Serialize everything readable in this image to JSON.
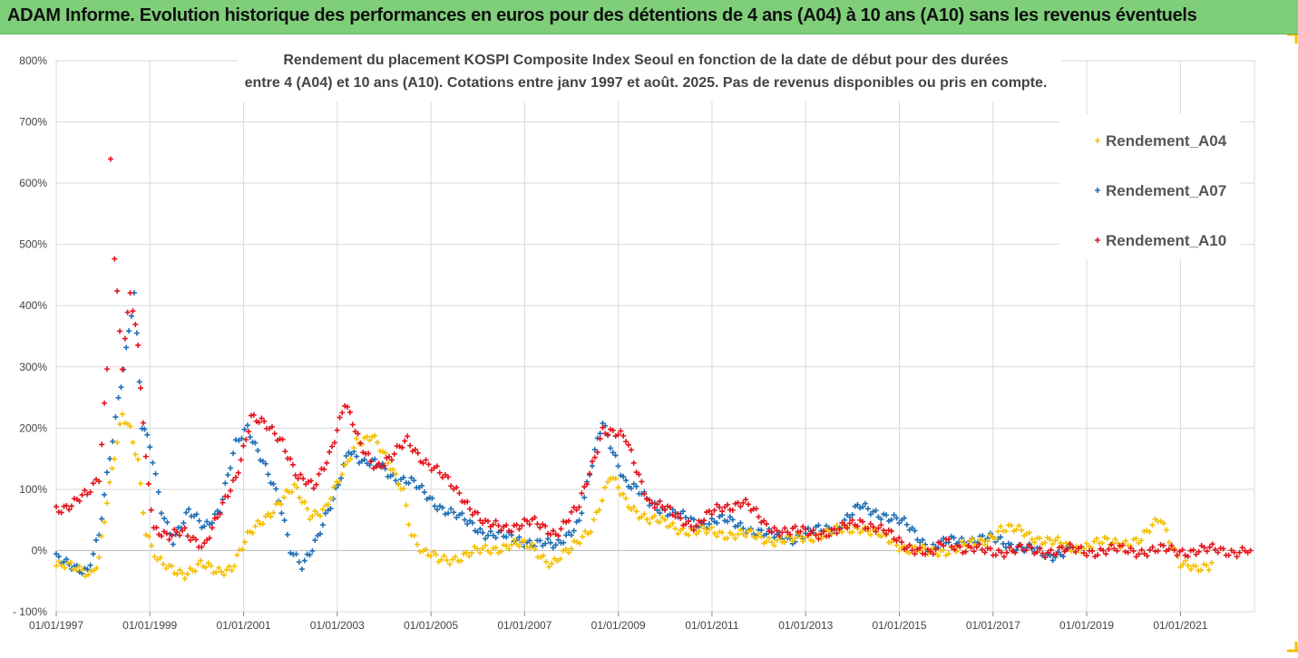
{
  "header": {
    "title": "ADAM Informe. Evolution historique des performances en euros pour des détentions de 4 ans (A04) à 10 ans (A10) sans les revenus éventuels"
  },
  "chart_data": {
    "type": "scatter",
    "title_line1": "Rendement du placement KOSPI Composite Index Seoul en fonction de la date de début pour des durées",
    "title_line2": "entre 4 (A04) et 10 ans (A10). Cotations entre janv 1997 et août. 2025. Pas de revenus disponibles ou pris en compte.",
    "xlabel": "",
    "ylabel": "",
    "x_ticks": [
      "01/01/1997",
      "01/01/1999",
      "01/01/2001",
      "01/01/2003",
      "01/01/2005",
      "01/01/2007",
      "01/01/2009",
      "01/01/2011",
      "01/01/2013",
      "01/01/2015",
      "01/01/2017",
      "01/01/2019",
      "01/01/2021"
    ],
    "y_ticks": [
      "800%",
      "700%",
      "600%",
      "500%",
      "400%",
      "300%",
      "200%",
      "100%",
      "0%",
      "- 100%"
    ],
    "ylim": [
      -100,
      800
    ],
    "xlim": [
      "1997-01-01",
      "2022-08-01"
    ],
    "grid": true,
    "legend_position": "top-right",
    "marker": "+",
    "series": [
      {
        "name": "Rendement_A04",
        "color": "#f5c000",
        "points": [
          [
            "1997-01-01",
            -25
          ],
          [
            "1997-04-01",
            -28
          ],
          [
            "1997-07-01",
            -32
          ],
          [
            "1997-10-01",
            -35
          ],
          [
            "1997-12-01",
            -10
          ],
          [
            "1998-02-01",
            80
          ],
          [
            "1998-04-01",
            150
          ],
          [
            "1998-06-01",
            220
          ],
          [
            "1998-08-01",
            200
          ],
          [
            "1998-10-01",
            150
          ],
          [
            "1998-12-01",
            30
          ],
          [
            "1999-03-01",
            -20
          ],
          [
            "1999-06-01",
            -30
          ],
          [
            "1999-10-01",
            -35
          ],
          [
            "2000-02-01",
            -25
          ],
          [
            "2000-06-01",
            -35
          ],
          [
            "2000-10-01",
            -25
          ],
          [
            "2001-02-01",
            20
          ],
          [
            "2001-06-01",
            50
          ],
          [
            "2001-10-01",
            80
          ],
          [
            "2002-02-01",
            100
          ],
          [
            "2002-06-01",
            60
          ],
          [
            "2002-10-01",
            70
          ],
          [
            "2003-03-01",
            130
          ],
          [
            "2003-06-01",
            180
          ],
          [
            "2003-10-01",
            190
          ],
          [
            "2004-02-01",
            140
          ],
          [
            "2004-06-01",
            100
          ],
          [
            "2004-08-01",
            30
          ],
          [
            "2004-11-01",
            -5
          ],
          [
            "2005-03-01",
            -15
          ],
          [
            "2005-08-01",
            -10
          ],
          [
            "2006-03-01",
            0
          ],
          [
            "2006-09-01",
            10
          ],
          [
            "2007-03-01",
            5
          ],
          [
            "2007-08-01",
            -20
          ],
          [
            "2008-01-01",
            0
          ],
          [
            "2008-06-01",
            40
          ],
          [
            "2008-11-01",
            120
          ],
          [
            "2009-03-01",
            80
          ],
          [
            "2009-09-01",
            50
          ],
          [
            "2010-03-01",
            40
          ],
          [
            "2010-09-01",
            30
          ],
          [
            "2011-03-01",
            30
          ],
          [
            "2011-09-01",
            25
          ],
          [
            "2012-03-01",
            20
          ],
          [
            "2012-09-01",
            15
          ],
          [
            "2013-03-01",
            25
          ],
          [
            "2013-09-01",
            30
          ],
          [
            "2014-03-01",
            40
          ],
          [
            "2014-09-01",
            20
          ],
          [
            "2015-03-01",
            5
          ],
          [
            "2015-09-01",
            -5
          ],
          [
            "2016-03-01",
            5
          ],
          [
            "2016-09-01",
            10
          ],
          [
            "2017-03-01",
            35
          ],
          [
            "2017-09-01",
            30
          ],
          [
            "2018-03-01",
            15
          ],
          [
            "2018-09-01",
            5
          ],
          [
            "2019-03-01",
            10
          ],
          [
            "2019-09-01",
            15
          ],
          [
            "2020-03-01",
            15
          ],
          [
            "2020-08-01",
            55
          ],
          [
            "2021-01-01",
            -20
          ],
          [
            "2021-05-01",
            -35
          ],
          [
            "2021-09-01",
            -20
          ]
        ]
      },
      {
        "name": "Rendement_A07",
        "color": "#1f6fb5",
        "points": [
          [
            "1997-01-01",
            -15
          ],
          [
            "1997-05-01",
            -20
          ],
          [
            "1997-09-01",
            -35
          ],
          [
            "1997-12-01",
            20
          ],
          [
            "1998-02-01",
            120
          ],
          [
            "1998-05-01",
            250
          ],
          [
            "1998-07-01",
            330
          ],
          [
            "1998-09-01",
            420
          ],
          [
            "1998-11-01",
            200
          ],
          [
            "1999-01-01",
            170
          ],
          [
            "1999-04-01",
            70
          ],
          [
            "1999-07-01",
            20
          ],
          [
            "1999-11-01",
            60
          ],
          [
            "2000-03-01",
            40
          ],
          [
            "2000-07-01",
            70
          ],
          [
            "2000-11-01",
            170
          ],
          [
            "2001-02-01",
            200
          ],
          [
            "2001-06-01",
            150
          ],
          [
            "2001-10-01",
            80
          ],
          [
            "2002-01-01",
            0
          ],
          [
            "2002-04-01",
            -20
          ],
          [
            "2002-08-01",
            20
          ],
          [
            "2002-12-01",
            80
          ],
          [
            "2003-04-01",
            170
          ],
          [
            "2003-08-01",
            140
          ],
          [
            "2003-12-01",
            140
          ],
          [
            "2004-04-01",
            120
          ],
          [
            "2004-08-01",
            110
          ],
          [
            "2004-12-01",
            90
          ],
          [
            "2005-04-01",
            70
          ],
          [
            "2005-09-01",
            50
          ],
          [
            "2006-03-01",
            30
          ],
          [
            "2006-09-01",
            20
          ],
          [
            "2007-03-01",
            15
          ],
          [
            "2007-09-01",
            5
          ],
          [
            "2008-03-01",
            50
          ],
          [
            "2008-09-01",
            210
          ],
          [
            "2009-03-01",
            110
          ],
          [
            "2009-09-01",
            80
          ],
          [
            "2010-03-01",
            60
          ],
          [
            "2010-09-01",
            45
          ],
          [
            "2011-03-01",
            50
          ],
          [
            "2011-09-01",
            40
          ],
          [
            "2012-03-01",
            25
          ],
          [
            "2012-09-01",
            20
          ],
          [
            "2013-03-01",
            30
          ],
          [
            "2013-09-01",
            40
          ],
          [
            "2014-03-01",
            70
          ],
          [
            "2014-09-01",
            60
          ],
          [
            "2015-03-01",
            40
          ],
          [
            "2015-09-01",
            5
          ],
          [
            "2016-03-01",
            15
          ],
          [
            "2016-09-01",
            20
          ],
          [
            "2017-03-01",
            15
          ],
          [
            "2017-09-01",
            5
          ],
          [
            "2018-03-01",
            -10
          ],
          [
            "2018-09-01",
            5
          ]
        ]
      },
      {
        "name": "Rendement_A10",
        "color": "#e5141c",
        "points": [
          [
            "1997-01-01",
            70
          ],
          [
            "1997-05-01",
            75
          ],
          [
            "1997-09-01",
            90
          ],
          [
            "1997-12-01",
            120
          ],
          [
            "1998-02-01",
            300
          ],
          [
            "1998-03-01",
            650
          ],
          [
            "1998-04-01",
            480
          ],
          [
            "1998-06-01",
            300
          ],
          [
            "1998-08-01",
            420
          ],
          [
            "1998-10-01",
            330
          ],
          [
            "1998-12-01",
            150
          ],
          [
            "1999-02-01",
            40
          ],
          [
            "1999-06-01",
            20
          ],
          [
            "1999-10-01",
            30
          ],
          [
            "2000-03-01",
            10
          ],
          [
            "2000-07-01",
            60
          ],
          [
            "2000-11-01",
            120
          ],
          [
            "2001-03-01",
            220
          ],
          [
            "2001-07-01",
            200
          ],
          [
            "2001-11-01",
            180
          ],
          [
            "2002-03-01",
            120
          ],
          [
            "2002-07-01",
            100
          ],
          [
            "2002-11-01",
            160
          ],
          [
            "2003-03-01",
            240
          ],
          [
            "2003-07-01",
            170
          ],
          [
            "2003-11-01",
            140
          ],
          [
            "2004-03-01",
            150
          ],
          [
            "2004-07-01",
            180
          ],
          [
            "2004-11-01",
            150
          ],
          [
            "2005-04-01",
            120
          ],
          [
            "2005-09-01",
            90
          ],
          [
            "2006-03-01",
            40
          ],
          [
            "2006-09-01",
            40
          ],
          [
            "2007-03-01",
            45
          ],
          [
            "2007-09-01",
            30
          ],
          [
            "2008-03-01",
            70
          ],
          [
            "2008-09-01",
            200
          ],
          [
            "2009-03-01",
            180
          ],
          [
            "2009-09-01",
            80
          ],
          [
            "2010-03-01",
            60
          ],
          [
            "2010-09-01",
            40
          ],
          [
            "2011-03-01",
            70
          ],
          [
            "2011-09-01",
            80
          ],
          [
            "2012-03-01",
            40
          ],
          [
            "2012-09-01",
            30
          ],
          [
            "2013-03-01",
            30
          ],
          [
            "2013-09-01",
            30
          ],
          [
            "2014-03-01",
            50
          ],
          [
            "2014-09-01",
            30
          ],
          [
            "2015-03-01",
            10
          ],
          [
            "2015-09-01",
            -10
          ],
          [
            "2016-01-01",
            20
          ],
          [
            "2016-06-01",
            0
          ],
          [
            "2018-01-01",
            0
          ],
          [
            "2020-01-01",
            0
          ],
          [
            "2022-07-01",
            0
          ]
        ]
      }
    ]
  }
}
